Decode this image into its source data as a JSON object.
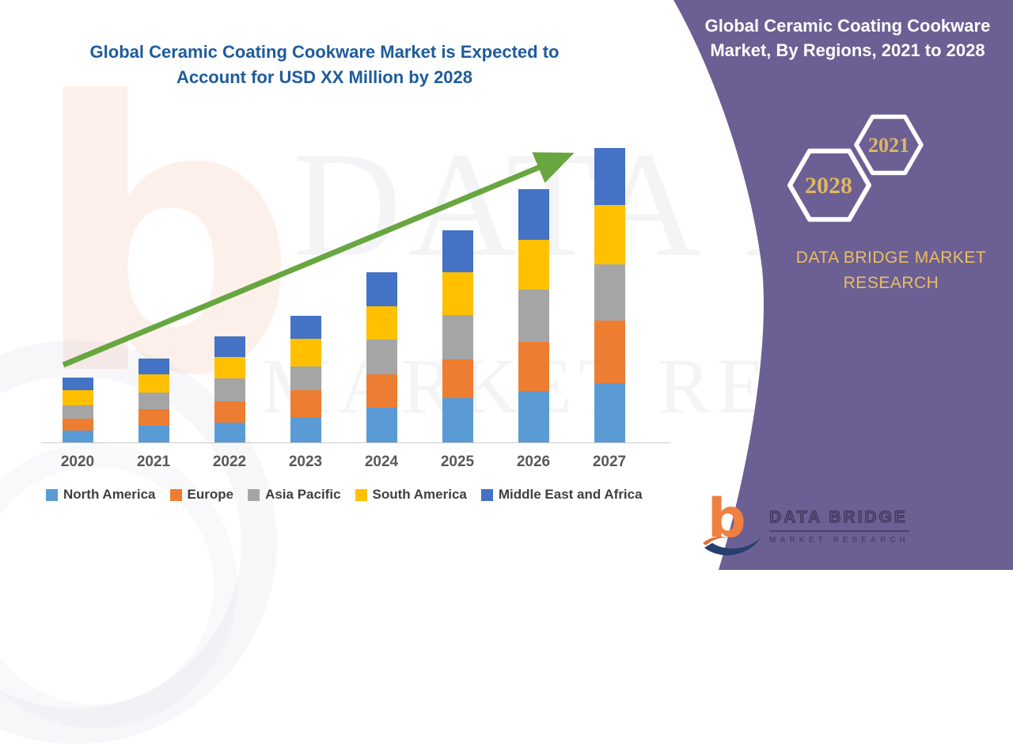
{
  "main_title": {
    "lines": [
      "Global Ceramic Coating Cookware Market is Expected to",
      "Account for USD XX Million by 2028"
    ]
  },
  "side_panel": {
    "title_lines": [
      "Global Ceramic Coating Cookware",
      "Market, By Regions, 2021 to 2028"
    ],
    "hexagon_year_start": "2021",
    "hexagon_year_end": "2028",
    "brand_name": "DATA BRIDGE MARKET RESEARCH",
    "background_color": "#6C5F93",
    "gold_color": "#DEB761"
  },
  "logo": {
    "glyph": "b",
    "line1": "DATA BRIDGE",
    "line2": "MARKET RESEARCH"
  },
  "watermark": {
    "line1": "DATA BRIDGE",
    "line2": "MARKET RESEARCH"
  },
  "chart_data": {
    "type": "bar",
    "stacked": true,
    "title": "Global Ceramic Coating Cookware Market is Expected to Account for USD XX Million by 2028",
    "xlabel": "",
    "ylabel": "",
    "y_axis_shown": false,
    "grid": false,
    "legend_position": "bottom",
    "values_note": "relative units estimated from bar heights; numeric values shown as XX (not labeled)",
    "categories": [
      "2020",
      "2021",
      "2022",
      "2023",
      "2024",
      "2025",
      "2026",
      "2027"
    ],
    "series": [
      {
        "name": "North America",
        "color": "#5B9BD5",
        "values": [
          15,
          21,
          25,
          32,
          44,
          56,
          65,
          75
        ]
      },
      {
        "name": "Europe",
        "color": "#ED7D31",
        "values": [
          15,
          21,
          27,
          34,
          42,
          49,
          62,
          79
        ]
      },
      {
        "name": "Asia Pacific",
        "color": "#A5A5A5",
        "values": [
          17,
          21,
          29,
          30,
          44,
          56,
          66,
          71
        ]
      },
      {
        "name": "South America",
        "color": "#FFC000",
        "values": [
          19,
          23,
          27,
          35,
          42,
          54,
          63,
          75
        ]
      },
      {
        "name": "Middle East and Africa",
        "color": "#4472C4",
        "values": [
          16,
          20,
          26,
          29,
          43,
          53,
          64,
          72
        ]
      }
    ],
    "totals": [
      82,
      106,
      134,
      160,
      215,
      268,
      320,
      372
    ],
    "trend_arrow": true,
    "trend_arrow_color": "#68A63F",
    "title_color": "#1E5C9B",
    "axis_label_color": "#595959"
  }
}
